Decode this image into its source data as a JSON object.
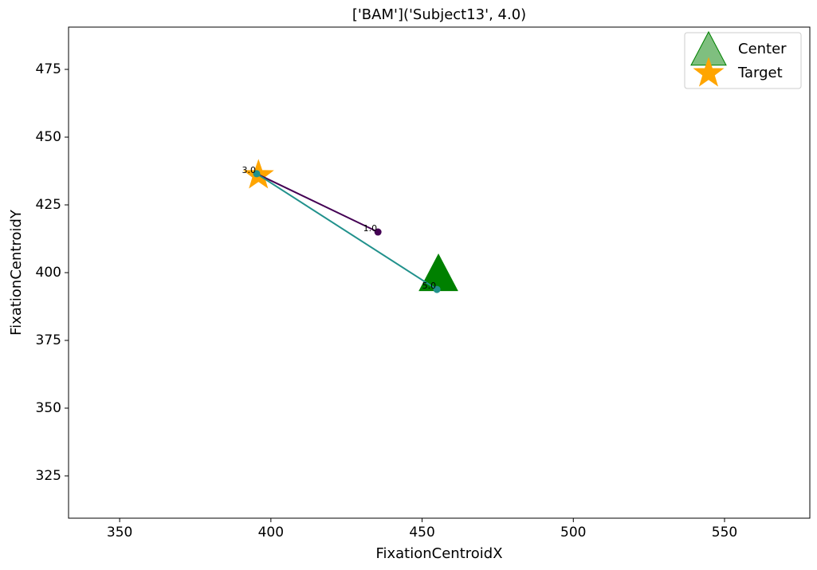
{
  "chart_data": {
    "type": "scatter",
    "title": "['BAM']('Subject13', 4.0)",
    "x_label": "FixationCentroidX",
    "y_label": "FixationCentroidY",
    "xlim": [
      333.1,
      578.2
    ],
    "ylim": [
      309.4,
      490.6
    ],
    "xticks": [
      350,
      400,
      450,
      500,
      550
    ],
    "yticks": [
      325,
      350,
      375,
      400,
      425,
      450,
      475
    ],
    "path": {
      "x": [
        435.4,
        395.3,
        454.9
      ],
      "y": [
        415,
        436.5,
        393.8
      ],
      "labels": [
        "1.0",
        "3.0",
        "5.0"
      ],
      "colors": [
        "#440154",
        "#21918c",
        "#21918c"
      ],
      "segment_colors": [
        "#440154",
        "#21918c"
      ]
    },
    "series": [
      {
        "name": "Center",
        "color": "#008000",
        "marker": "triangle",
        "x": [
          455.4
        ],
        "y": [
          399.7
        ]
      },
      {
        "name": "Target",
        "color": "#ffa500",
        "marker": "star",
        "x": [
          395.9
        ],
        "y": [
          435.9
        ]
      }
    ],
    "legend": "upper right"
  }
}
